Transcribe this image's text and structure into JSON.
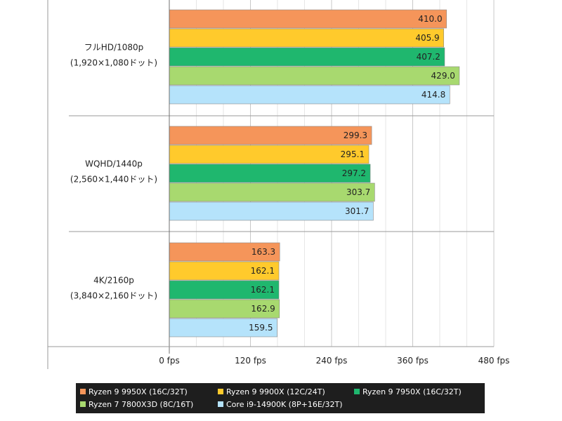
{
  "chart_data": {
    "type": "bar",
    "orientation": "horizontal",
    "categories": [
      [
        "フルHD/1080p",
        "(1,920×1,080ドット)"
      ],
      [
        "WQHD/1440p",
        "(2,560×1,440ドット)"
      ],
      [
        "4K/2160p",
        "(3,840×2,160ドット)"
      ]
    ],
    "series": [
      {
        "name": "Ryzen 9 9950X (16C/32T)",
        "color": "#f5955a",
        "values": [
          410.0,
          299.3,
          163.3
        ]
      },
      {
        "name": "Ryzen 9 9900X (12C/24T)",
        "color": "#ffca2c",
        "values": [
          405.9,
          295.1,
          162.1
        ]
      },
      {
        "name": "Ryzen 9 7950X (16C/32T)",
        "color": "#1fb76e",
        "values": [
          407.2,
          297.2,
          162.1
        ]
      },
      {
        "name": "Ryzen 7 7800X3D (8C/16T)",
        "color": "#a8d96f",
        "values": [
          429.0,
          303.7,
          162.9
        ]
      },
      {
        "name": "Core i9-14900K (8P+16E/32T)",
        "color": "#b5e3fb",
        "values": [
          414.8,
          301.7,
          159.5
        ]
      }
    ],
    "xlim": [
      0,
      480
    ],
    "xticks": [
      "0 fps",
      "120 fps",
      "240 fps",
      "360 fps",
      "480 fps"
    ],
    "xtick_values": [
      0,
      120,
      240,
      360,
      480
    ],
    "grid": true,
    "legend_position": "bottom",
    "title": "",
    "xlabel": "",
    "ylabel": ""
  }
}
